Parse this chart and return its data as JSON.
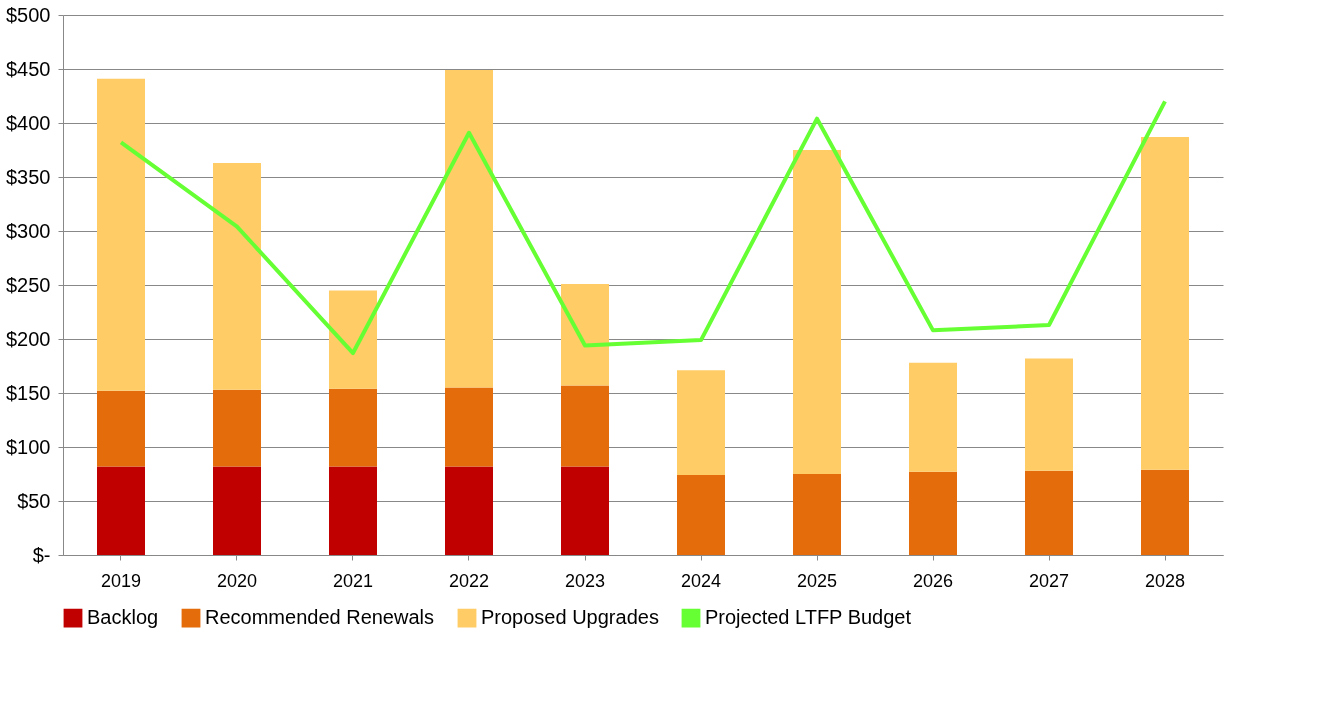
{
  "chart_data": {
    "type": "bar",
    "stacked": true,
    "categories": [
      "2019",
      "2020",
      "2021",
      "2022",
      "2023",
      "2024",
      "2025",
      "2026",
      "2027",
      "2028"
    ],
    "series": [
      {
        "name": "Backlog",
        "color": "#c00000",
        "values": [
          82,
          82,
          82,
          82,
          82,
          null,
          null,
          null,
          null,
          null
        ]
      },
      {
        "name": "Recommended Renewals",
        "color": "#e46c0a",
        "values": [
          70,
          71,
          72,
          73,
          75,
          74,
          75,
          77,
          78,
          79
        ]
      },
      {
        "name": "Proposed Upgrades",
        "color": "#ffcc66",
        "values": [
          289,
          210,
          91,
          294,
          94,
          97,
          300,
          101,
          104,
          308
        ]
      },
      {
        "name": "Projected LTFP Budget",
        "type": "line",
        "color": "#66ff33",
        "values": [
          382,
          304,
          187,
          391,
          194,
          199,
          404,
          208,
          213,
          420
        ]
      }
    ],
    "ylim": [
      0,
      500
    ],
    "yticks": [
      {
        "value": 0,
        "label": "$-"
      },
      {
        "value": 50,
        "label": "$50"
      },
      {
        "value": 100,
        "label": "$100"
      },
      {
        "value": 150,
        "label": "$150"
      },
      {
        "value": 200,
        "label": "$200"
      },
      {
        "value": 250,
        "label": "$250"
      },
      {
        "value": 300,
        "label": "$300"
      },
      {
        "value": 350,
        "label": "$350"
      },
      {
        "value": 400,
        "label": "$400"
      },
      {
        "value": 450,
        "label": "$450"
      },
      {
        "value": 500,
        "label": "$500"
      }
    ],
    "grid": "y",
    "legend": "bottom"
  }
}
